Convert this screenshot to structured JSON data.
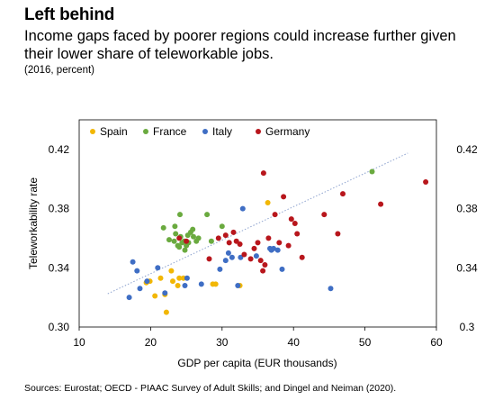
{
  "title": "Left behind",
  "subtitle": "Income gaps faced by poorer regions could increase further given their lower share of teleworkable jobs.",
  "units": "(2016, percent)",
  "source": "Sources: Eurostat; OECD - PIAAC Survey of Adult Skills; and Dingel and Neiman (2020).",
  "chart_data": {
    "type": "scatter",
    "xlabel": "GDP per capita (EUR thousands)",
    "ylabel": "Teleworkability rate",
    "xlim": [
      10,
      60
    ],
    "ylim": [
      0.3,
      0.44
    ],
    "x_ticks": [
      "10",
      "20",
      "30",
      "40",
      "50",
      "60"
    ],
    "y_ticks_left": [
      "0.30",
      "0.34",
      "0.38",
      "0.42"
    ],
    "y_ticks_right": [
      "0.3",
      "0.34",
      "0.38",
      "0.42"
    ],
    "grid": false,
    "legend_position": "top-left",
    "trendline": {
      "style": "dotted",
      "color": "#8ea3cf",
      "from": [
        14,
        0.3225
      ],
      "to": [
        56,
        0.4175
      ]
    },
    "series": [
      {
        "name": "Spain",
        "color": "#f2b705",
        "points": [
          [
            19.4,
            0.33
          ],
          [
            19.9,
            0.331
          ],
          [
            20.6,
            0.321
          ],
          [
            21.4,
            0.333
          ],
          [
            22.0,
            0.322
          ],
          [
            22.2,
            0.31
          ],
          [
            22.9,
            0.338
          ],
          [
            23.1,
            0.331
          ],
          [
            23.8,
            0.328
          ],
          [
            24.0,
            0.333
          ],
          [
            24.6,
            0.333
          ],
          [
            28.7,
            0.329
          ],
          [
            29.1,
            0.329
          ],
          [
            32.5,
            0.328
          ],
          [
            36.4,
            0.384
          ]
        ]
      },
      {
        "name": "France",
        "color": "#6aaa3f",
        "points": [
          [
            21.8,
            0.367
          ],
          [
            22.6,
            0.359
          ],
          [
            23.3,
            0.358
          ],
          [
            23.4,
            0.368
          ],
          [
            23.5,
            0.363
          ],
          [
            23.8,
            0.355
          ],
          [
            24.0,
            0.354
          ],
          [
            24.1,
            0.376
          ],
          [
            24.2,
            0.361
          ],
          [
            24.4,
            0.357
          ],
          [
            24.7,
            0.358
          ],
          [
            24.8,
            0.352
          ],
          [
            25.0,
            0.355
          ],
          [
            25.2,
            0.362
          ],
          [
            25.3,
            0.357
          ],
          [
            25.6,
            0.364
          ],
          [
            25.9,
            0.366
          ],
          [
            26.0,
            0.361
          ],
          [
            26.4,
            0.358
          ],
          [
            26.7,
            0.36
          ],
          [
            27.9,
            0.376
          ],
          [
            28.5,
            0.358
          ],
          [
            30.0,
            0.368
          ],
          [
            51.0,
            0.405
          ]
        ]
      },
      {
        "name": "Italy",
        "color": "#3f6ec4",
        "points": [
          [
            17.0,
            0.32
          ],
          [
            17.5,
            0.344
          ],
          [
            18.1,
            0.338
          ],
          [
            18.5,
            0.326
          ],
          [
            19.5,
            0.331
          ],
          [
            21.0,
            0.34
          ],
          [
            22.0,
            0.323
          ],
          [
            24.8,
            0.328
          ],
          [
            25.1,
            0.333
          ],
          [
            27.1,
            0.329
          ],
          [
            29.7,
            0.339
          ],
          [
            30.5,
            0.345
          ],
          [
            30.9,
            0.35
          ],
          [
            31.4,
            0.347
          ],
          [
            32.2,
            0.328
          ],
          [
            32.6,
            0.347
          ],
          [
            32.9,
            0.38
          ],
          [
            34.8,
            0.348
          ],
          [
            36.7,
            0.353
          ],
          [
            36.9,
            0.352
          ],
          [
            37.2,
            0.353
          ],
          [
            37.8,
            0.352
          ],
          [
            38.4,
            0.339
          ],
          [
            45.2,
            0.326
          ]
        ]
      },
      {
        "name": "Germany",
        "color": "#b8161c",
        "points": [
          [
            24.0,
            0.36
          ],
          [
            25.0,
            0.358
          ],
          [
            28.2,
            0.346
          ],
          [
            29.5,
            0.36
          ],
          [
            30.5,
            0.362
          ],
          [
            31.0,
            0.357
          ],
          [
            31.6,
            0.364
          ],
          [
            32.0,
            0.358
          ],
          [
            32.5,
            0.356
          ],
          [
            33.1,
            0.349
          ],
          [
            34.0,
            0.346
          ],
          [
            34.5,
            0.353
          ],
          [
            35.0,
            0.357
          ],
          [
            35.4,
            0.345
          ],
          [
            35.7,
            0.338
          ],
          [
            35.8,
            0.404
          ],
          [
            36.0,
            0.342
          ],
          [
            36.5,
            0.36
          ],
          [
            37.4,
            0.376
          ],
          [
            38.0,
            0.357
          ],
          [
            38.6,
            0.388
          ],
          [
            39.3,
            0.355
          ],
          [
            39.7,
            0.373
          ],
          [
            40.2,
            0.37
          ],
          [
            40.5,
            0.363
          ],
          [
            41.2,
            0.347
          ],
          [
            44.3,
            0.376
          ],
          [
            46.2,
            0.363
          ],
          [
            46.9,
            0.39
          ],
          [
            52.2,
            0.383
          ],
          [
            58.5,
            0.398
          ]
        ]
      }
    ]
  }
}
